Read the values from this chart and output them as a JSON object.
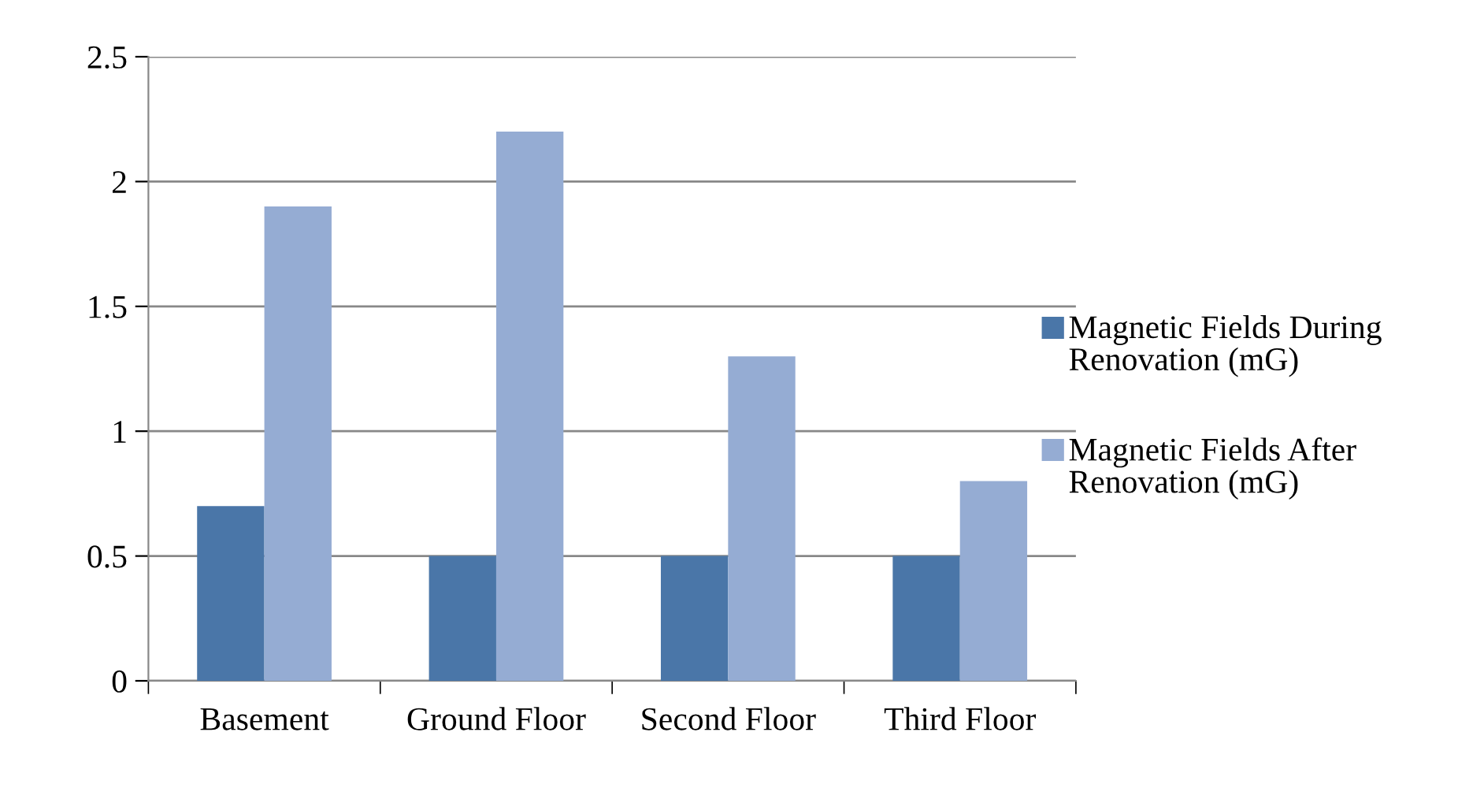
{
  "chart_data": {
    "type": "bar",
    "categories": [
      "Basement",
      "Ground Floor",
      "Second Floor",
      "Third Floor"
    ],
    "series": [
      {
        "name": "Magnetic Fields During Renovation (mG)",
        "color": "#4a76a8",
        "values": [
          0.7,
          0.5,
          0.5,
          0.5
        ]
      },
      {
        "name": "Magnetic Fields After Renovation (mG)",
        "color": "#95acd3",
        "values": [
          1.9,
          2.2,
          1.3,
          0.8
        ]
      }
    ],
    "ylim": [
      0,
      2.5
    ],
    "yticks": [
      0,
      0.5,
      1,
      1.5,
      2,
      2.5
    ],
    "grid": "y",
    "legend": "right"
  }
}
